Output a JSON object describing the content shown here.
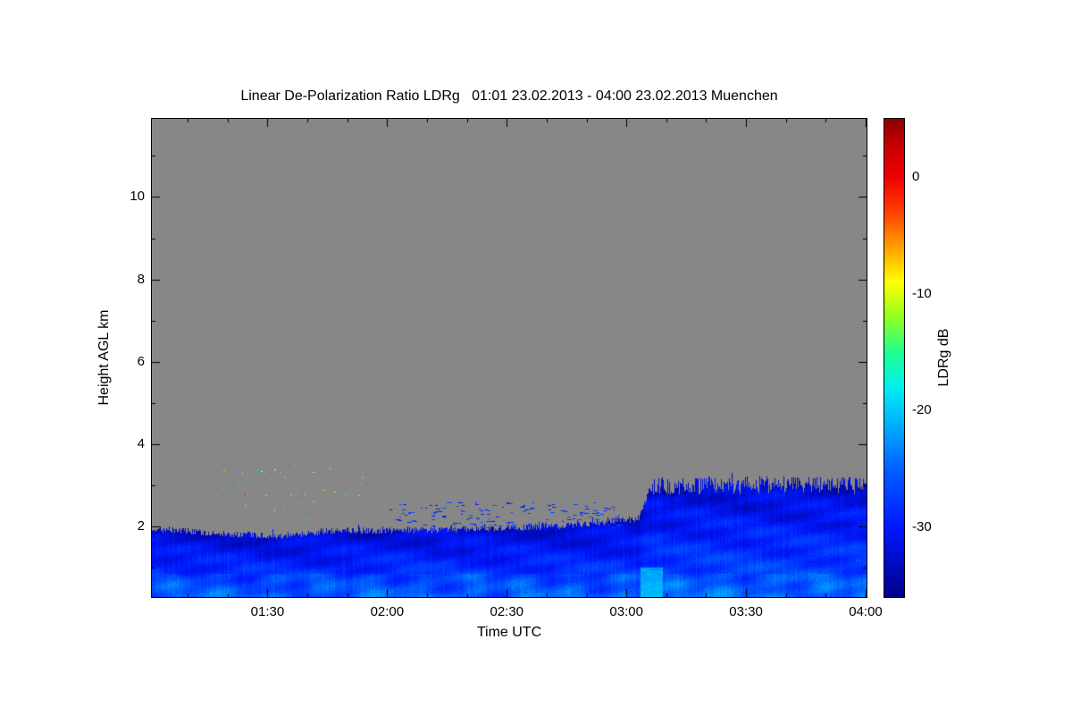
{
  "chart_data": {
    "type": "heatmap",
    "title": "Linear De-Polarization Ratio LDRg   01:01 23.02.2013 - 04:00 23.02.2013 Muenchen",
    "xlabel": "Time UTC",
    "ylabel": "Height AGL km",
    "site": "Muenchen",
    "time_start": "01:01 23.02.2013",
    "time_end": "04:00 23.02.2013",
    "x_ticks": [
      "01:30",
      "02:00",
      "02:30",
      "03:00",
      "03:30",
      "04:00"
    ],
    "x_tick_minutes": [
      90,
      120,
      150,
      180,
      210,
      240
    ],
    "x_range_minutes": [
      61,
      240
    ],
    "y_ticks": [
      2,
      4,
      6,
      8,
      10
    ],
    "y_range_km": [
      0.3,
      11.9
    ],
    "no_data_color": "#878787",
    "colorbar": {
      "label": "LDRg dB",
      "ticks": [
        0,
        -10,
        -20,
        -30
      ],
      "range_db": [
        -36,
        5
      ],
      "stops": [
        {
          "value": -36,
          "color": "#00008B"
        },
        {
          "value": -30,
          "color": "#0018FF"
        },
        {
          "value": -25,
          "color": "#0060FF"
        },
        {
          "value": -21,
          "color": "#00B4FF"
        },
        {
          "value": -18,
          "color": "#00F0F0"
        },
        {
          "value": -15,
          "color": "#20FF90"
        },
        {
          "value": -12,
          "color": "#90FF20"
        },
        {
          "value": -9,
          "color": "#FFFF00"
        },
        {
          "value": -6,
          "color": "#FFA000"
        },
        {
          "value": -3,
          "color": "#FF4000"
        },
        {
          "value": 0,
          "color": "#F00000"
        },
        {
          "value": 3,
          "color": "#C00000"
        },
        {
          "value": 5,
          "color": "#8B0000"
        }
      ]
    },
    "cloud_top_profile_km": [
      {
        "t": 61,
        "top": 1.95
      },
      {
        "t": 75,
        "top": 1.85
      },
      {
        "t": 95,
        "top": 1.75
      },
      {
        "t": 105,
        "top": 1.9
      },
      {
        "t": 120,
        "top": 1.9
      },
      {
        "t": 150,
        "top": 1.95
      },
      {
        "t": 168,
        "top": 2.05
      },
      {
        "t": 183,
        "top": 2.2
      },
      {
        "t": 186,
        "top": 3.0
      },
      {
        "t": 210,
        "top": 3.0
      },
      {
        "t": 230,
        "top": 3.05
      },
      {
        "t": 240,
        "top": 2.95
      }
    ],
    "in_cloud_value_db": {
      "typical": -30,
      "range": [
        -33,
        -24
      ]
    },
    "speckle_region": {
      "t_minutes": [
        75,
        115
      ],
      "h_km": [
        2.2,
        3.5
      ],
      "values_db": [
        -25,
        0
      ]
    },
    "blue_dash_region": {
      "t_minutes": [
        120,
        178
      ],
      "h_km": [
        1.95,
        2.6
      ],
      "values_db": [
        -31,
        -25
      ]
    },
    "surface_streak": {
      "t_minutes": [
        184,
        189
      ],
      "h_km": [
        0.3,
        1.0
      ],
      "value_db": -20
    }
  }
}
